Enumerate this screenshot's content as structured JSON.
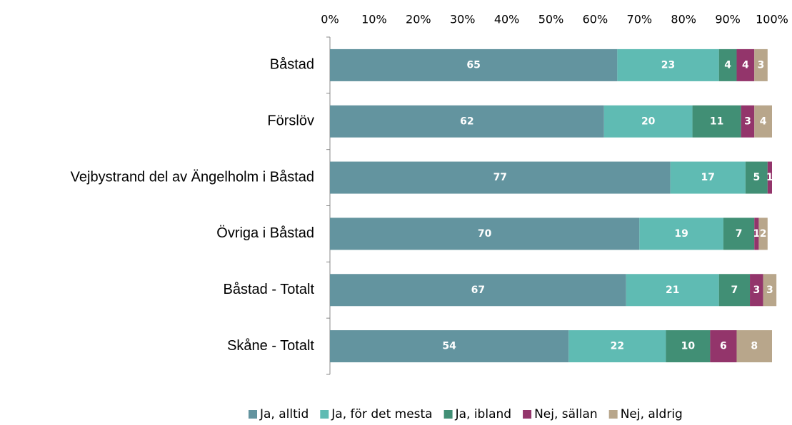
{
  "chart_data": {
    "type": "stacked-bar-horizontal",
    "categories": [
      "Båstad",
      "Förslöv",
      "Vejbystrand del av Ängelholm i Båstad",
      "Övriga i Båstad",
      "Båstad - Totalt",
      "Skåne - Totalt"
    ],
    "series": [
      {
        "name": "Ja, alltid",
        "color": "#63949f",
        "values": [
          65,
          62,
          77,
          70,
          67,
          54
        ]
      },
      {
        "name": "Ja, för det mesta",
        "color": "#5fbbb3",
        "values": [
          23,
          20,
          17,
          19,
          21,
          22
        ]
      },
      {
        "name": "Ja, ibland",
        "color": "#418f75",
        "values": [
          4,
          11,
          5,
          7,
          7,
          10
        ]
      },
      {
        "name": "Nej, sällan",
        "color": "#93356b",
        "values": [
          4,
          3,
          1,
          1,
          3,
          6
        ]
      },
      {
        "name": "Nej, aldrig",
        "color": "#b8a68b",
        "values": [
          3,
          4,
          null,
          2,
          3,
          8
        ]
      }
    ],
    "xlim": [
      0,
      100
    ],
    "xticks": [
      {
        "value": 0,
        "label": "0%"
      },
      {
        "value": 10,
        "label": "10%"
      },
      {
        "value": 20,
        "label": "20%"
      },
      {
        "value": 30,
        "label": "30%"
      },
      {
        "value": 40,
        "label": "40%"
      },
      {
        "value": 50,
        "label": "50%"
      },
      {
        "value": 60,
        "label": "60%"
      },
      {
        "value": 70,
        "label": "70%"
      },
      {
        "value": 80,
        "label": "80%"
      },
      {
        "value": 90,
        "label": "90%"
      },
      {
        "value": 100,
        "label": "100%"
      }
    ],
    "legend": "bottom"
  }
}
